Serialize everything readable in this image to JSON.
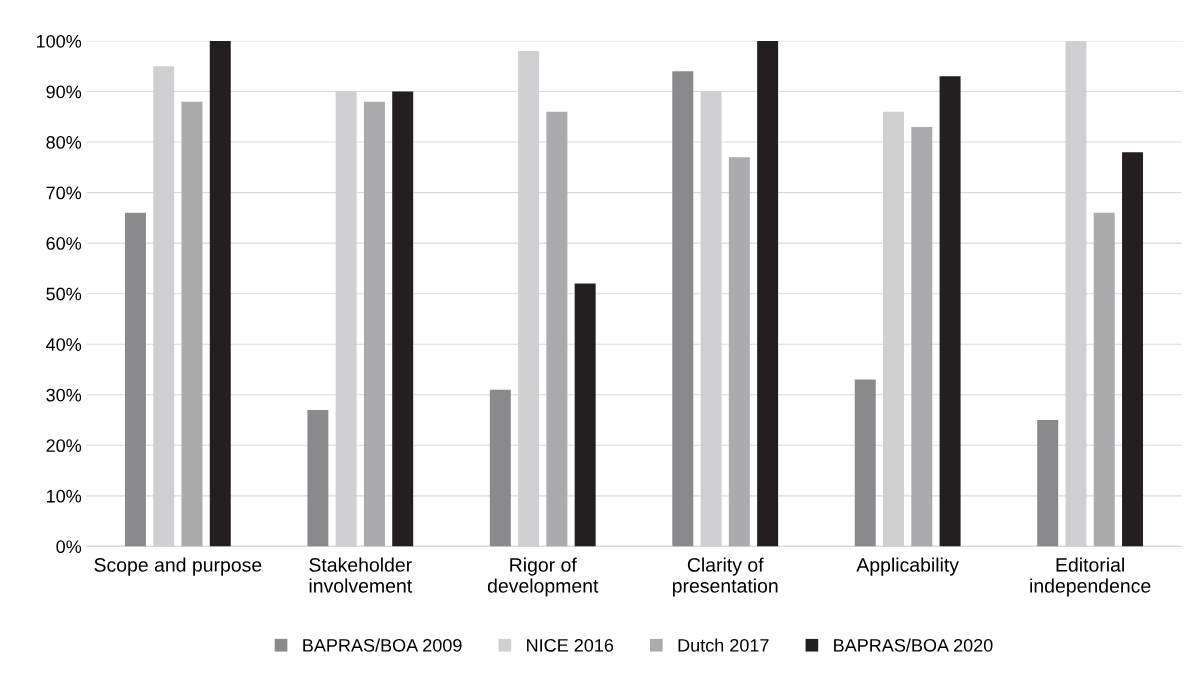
{
  "chart_data": {
    "type": "bar",
    "categories": [
      "Scope and purpose",
      "Stakeholder\ninvolvement",
      "Rigor of\ndevelopment",
      "Clarity of\npresentation",
      "Applicability",
      "Editorial\nindependence"
    ],
    "series": [
      {
        "name": "BAPRAS/BOA 2009",
        "color": "#8a8a8c",
        "values": [
          66,
          27,
          31,
          94,
          33,
          25
        ]
      },
      {
        "name": "NICE 2016",
        "color": "#d0d0d2",
        "values": [
          95,
          90,
          98,
          90,
          86,
          100
        ]
      },
      {
        "name": "Dutch 2017",
        "color": "#ababae",
        "values": [
          88,
          88,
          86,
          77,
          83,
          66
        ]
      },
      {
        "name": "BAPRAS/BOA 2020",
        "color": "#231f20",
        "values": [
          100,
          90,
          52,
          100,
          93,
          78
        ]
      }
    ],
    "ylim": [
      0,
      100
    ],
    "yticks": [
      {
        "value": 0,
        "label": "0%"
      },
      {
        "value": 10,
        "label": "10%"
      },
      {
        "value": 20,
        "label": "20%"
      },
      {
        "value": 30,
        "label": "30%"
      },
      {
        "value": 40,
        "label": "40%"
      },
      {
        "value": 50,
        "label": "50%"
      },
      {
        "value": 60,
        "label": "60%"
      },
      {
        "value": 70,
        "label": "70%"
      },
      {
        "value": 80,
        "label": "80%"
      },
      {
        "value": 90,
        "label": "90%"
      },
      {
        "value": 100,
        "label": "100%"
      }
    ],
    "grid": "y",
    "legend": "bottom"
  }
}
